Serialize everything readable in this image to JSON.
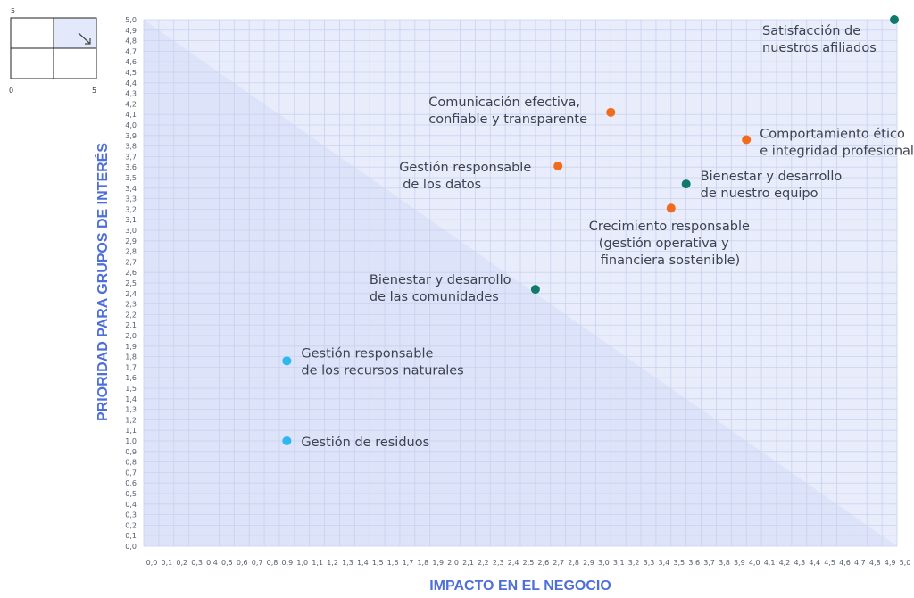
{
  "chart_data": {
    "type": "scatter",
    "title": "",
    "xlabel": "IMPACTO EN EL NEGOCIO",
    "ylabel": "PRIORIDAD PARA GRUPOS DE INTERÉS",
    "xlim": [
      0,
      5.0
    ],
    "ylim": [
      0,
      5.0
    ],
    "x_ticks": [
      "0,0",
      "0,1",
      "0,2",
      "0,3",
      "0,4",
      "0,5",
      "0,6",
      "0,7",
      "0,8",
      "0,9",
      "1,0",
      "1,1",
      "1,2",
      "1,3",
      "1,4",
      "1,5",
      "1,6",
      "1,7",
      "1,8",
      "1,9",
      "2,0",
      "2,1",
      "2,2",
      "2,3",
      "2,4",
      "2,5",
      "2,6",
      "2,7",
      "2,8",
      "2,9",
      "3,0",
      "3,1",
      "3,2",
      "3,3",
      "3,4",
      "3,5",
      "3,6",
      "3,7",
      "3,8",
      "3,9",
      "4,0",
      "4,1",
      "4,2",
      "4,3",
      "4,4",
      "4,5",
      "4,6",
      "4,7",
      "4,8",
      "4,9",
      "5,0"
    ],
    "y_ticks": [
      "0,0",
      "0,1",
      "0,2",
      "0,3",
      "0,4",
      "0,5",
      "0,6",
      "0,7",
      "0,8",
      "0,9",
      "1,0",
      "1,1",
      "1,2",
      "1,3",
      "1,4",
      "1,5",
      "1,6",
      "1,7",
      "1,8",
      "1,9",
      "2,0",
      "2,1",
      "2,2",
      "2,3",
      "2,4",
      "2,5",
      "2,6",
      "2,7",
      "2,8",
      "2,9",
      "3,0",
      "3,1",
      "3,2",
      "3,3",
      "3,4",
      "3,5",
      "3,6",
      "3,7",
      "3,8",
      "3,9",
      "4,0",
      "4,1",
      "4,2",
      "4,3",
      "4,4",
      "4,5",
      "4,6",
      "4,7",
      "4,8",
      "4,9",
      "5,0"
    ],
    "grid": true,
    "points": [
      {
        "label_lines": [
          "Satisfacción de",
          "nuestros afiliados"
        ],
        "x": 5.05,
        "y": 5.0,
        "color": "#0f7a6c"
      },
      {
        "label_lines": [
          "Comunicación efectiva,",
          "confiable y transparente"
        ],
        "x": 3.1,
        "y": 4.12,
        "color": "#f26a1b"
      },
      {
        "label_lines": [
          "Comportamiento ético",
          "e integridad profesional"
        ],
        "x": 4.0,
        "y": 3.86,
        "color": "#f26a1b"
      },
      {
        "label_lines": [
          "Gestión responsable",
          "de los datos"
        ],
        "x": 2.75,
        "y": 3.61,
        "color": "#f26a1b"
      },
      {
        "label_lines": [
          "Bienestar y desarrollo",
          "de nuestro equipo"
        ],
        "x": 3.6,
        "y": 3.44,
        "color": "#0f7a6c"
      },
      {
        "label_lines": [
          "Crecimiento responsable",
          "(gestión operativa y",
          "financiera sostenible)"
        ],
        "x": 3.5,
        "y": 3.21,
        "color": "#f26a1b"
      },
      {
        "label_lines": [
          "Bienestar y desarrollo",
          "de las comunidades"
        ],
        "x": 2.6,
        "y": 2.44,
        "color": "#0f7a6c"
      },
      {
        "label_lines": [
          "Gestión responsable",
          "de los recursos naturales"
        ],
        "x": 0.95,
        "y": 1.76,
        "color": "#2bb7ef"
      },
      {
        "label_lines": [
          "Gestión de residuos"
        ],
        "x": 0.95,
        "y": 1.0,
        "color": "#2bb7ef"
      }
    ]
  },
  "mini_legend": {
    "top_label": "5",
    "origin_label": "0",
    "right_label": "5"
  },
  "colors": {
    "plot_bg": "#e9edfb",
    "triangle": "#dde3f8",
    "grid": "#c9d1ef",
    "axis_title": "#4f6fd8"
  }
}
